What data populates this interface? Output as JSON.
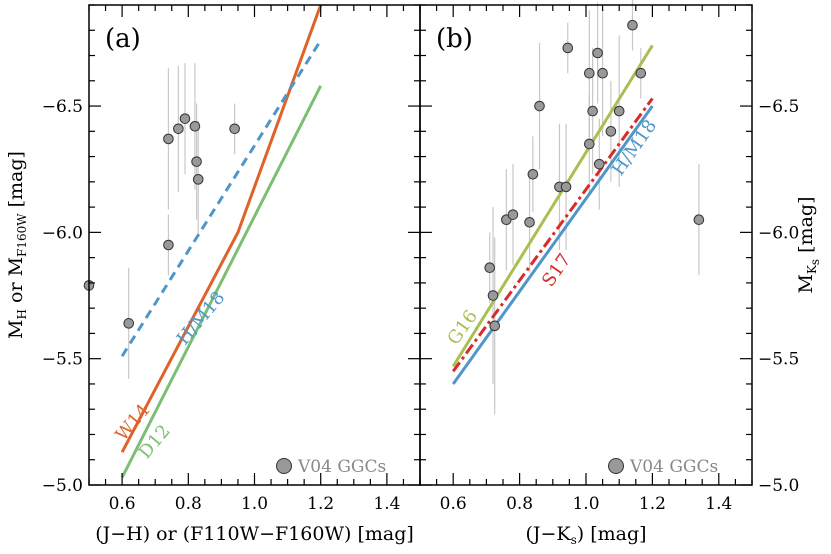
{
  "chart_data": [
    {
      "type": "scatter",
      "panel_tag": "(a)",
      "xlabel": "(J−H) or (F110W−F160W) [mag]",
      "ylabel": {
        "main": "M",
        "sub1": "H",
        "mid": " or M",
        "sub2": "F160W",
        "end": " [mag]"
      },
      "xlim": [
        0.5,
        1.5
      ],
      "ylim": [
        -5.0,
        -6.9
      ],
      "xticks": [
        0.6,
        0.8,
        1.0,
        1.2,
        1.4
      ],
      "xtick_labels": [
        "0.6",
        "0.8",
        "1.0",
        "1.2",
        "1.4"
      ],
      "yticks": [
        -5.0,
        -5.5,
        -6.0,
        -6.5
      ],
      "ytick_labels": [
        "−5.0",
        "−5.5",
        "−6.0",
        "−6.5"
      ],
      "legend": {
        "label": "V04 GGCs",
        "position": "lower-right"
      },
      "points": [
        {
          "x": 0.5,
          "y": -5.79,
          "err": 0.0
        },
        {
          "x": 0.62,
          "y": -5.64,
          "err": 0.22
        },
        {
          "x": 0.74,
          "y": -5.95,
          "err": 0.12
        },
        {
          "x": 0.74,
          "y": -6.37,
          "err": 0.28
        },
        {
          "x": 0.77,
          "y": -6.41,
          "err": 0.25
        },
        {
          "x": 0.79,
          "y": -6.45,
          "err": 0.22
        },
        {
          "x": 0.82,
          "y": -6.42,
          "err": 0.25
        },
        {
          "x": 0.825,
          "y": -6.28,
          "err": 0.23
        },
        {
          "x": 0.83,
          "y": -6.21,
          "err": 0.23
        },
        {
          "x": 0.94,
          "y": -6.41,
          "err": 0.1
        }
      ],
      "series": [
        {
          "name": "W14",
          "color": "#e0622b",
          "dash": "solid",
          "x": [
            0.6,
            0.95,
            1.2
          ],
          "y": [
            -5.13,
            -6.0,
            -6.9
          ]
        },
        {
          "name": "D12",
          "color": "#7cbf74",
          "dash": "solid",
          "x": [
            0.6,
            1.2
          ],
          "y": [
            -5.03,
            -6.58
          ]
        },
        {
          "name": "H/M18",
          "color": "#4f97c9",
          "dash": "dashed",
          "x": [
            0.6,
            1.2
          ],
          "y": [
            -5.51,
            -6.76
          ]
        }
      ],
      "labels": [
        {
          "text": "W14",
          "color": "#e0622b",
          "x": 0.605,
          "y": -5.17,
          "angle": -50
        },
        {
          "text": "D12",
          "color": "#7cbf74",
          "x": 0.675,
          "y": -5.1,
          "angle": -50
        },
        {
          "text": "H/M18",
          "color": "#4f97c9",
          "x": 0.79,
          "y": -5.55,
          "angle": -50
        }
      ]
    },
    {
      "type": "scatter",
      "panel_tag": "(b)",
      "xlabel": {
        "main": "(J−K",
        "sub": "s",
        "end": ") [mag]"
      },
      "ylabel": {
        "main": "M",
        "sub1": "K",
        "sub2": "s",
        "end": " [mag]"
      },
      "xlim": [
        0.5,
        1.5
      ],
      "ylim": [
        -5.0,
        -6.9
      ],
      "xticks": [
        0.6,
        0.8,
        1.0,
        1.2,
        1.4
      ],
      "xtick_labels": [
        "0.6",
        "0.8",
        "1.0",
        "1.2",
        "1.4"
      ],
      "yticks": [
        -5.0,
        -5.5,
        -6.0,
        -6.5
      ],
      "ytick_labels": [
        "−5.0",
        "−5.5",
        "−6.0",
        "−6.5"
      ],
      "legend": {
        "label": "V04 GGCs",
        "position": "lower-right"
      },
      "points": [
        {
          "x": 0.71,
          "y": -5.86,
          "err": 0.14
        },
        {
          "x": 0.72,
          "y": -5.75,
          "err": 0.35
        },
        {
          "x": 0.725,
          "y": -5.63,
          "err": 0.35
        },
        {
          "x": 0.76,
          "y": -6.05,
          "err": 0.2
        },
        {
          "x": 0.78,
          "y": -6.07,
          "err": 0.2
        },
        {
          "x": 0.83,
          "y": -6.04,
          "err": 0.2
        },
        {
          "x": 0.84,
          "y": -6.23,
          "err": 0.15
        },
        {
          "x": 0.86,
          "y": -6.5,
          "err": 0.25
        },
        {
          "x": 0.92,
          "y": -6.18,
          "err": 0.25
        },
        {
          "x": 0.94,
          "y": -6.18,
          "err": 0.25
        },
        {
          "x": 0.945,
          "y": -6.73,
          "err": 0.1
        },
        {
          "x": 1.01,
          "y": -6.35,
          "err": 0.2
        },
        {
          "x": 1.01,
          "y": -6.63,
          "err": 0.25
        },
        {
          "x": 1.02,
          "y": -6.48,
          "err": 0.25
        },
        {
          "x": 1.035,
          "y": -6.71,
          "err": 0.2
        },
        {
          "x": 1.04,
          "y": -6.27,
          "err": 0.18
        },
        {
          "x": 1.05,
          "y": -6.63,
          "err": 0.25
        },
        {
          "x": 1.075,
          "y": -6.4,
          "err": 0.2
        },
        {
          "x": 1.1,
          "y": -6.48,
          "err": 0.3
        },
        {
          "x": 1.14,
          "y": -6.82,
          "err": 0.1
        },
        {
          "x": 1.165,
          "y": -6.63,
          "err": 0.1
        },
        {
          "x": 1.34,
          "y": -6.05,
          "err": 0.22
        }
      ],
      "series": [
        {
          "name": "G16",
          "color": "#a9bf52",
          "dash": "solid",
          "x": [
            0.6,
            1.2
          ],
          "y": [
            -5.47,
            -6.74
          ]
        },
        {
          "name": "S17",
          "color": "#d72c2a",
          "dash": "dashdot",
          "x": [
            0.6,
            1.2
          ],
          "y": [
            -5.45,
            -6.53
          ]
        },
        {
          "name": "H/M18",
          "color": "#4f97c9",
          "dash": "solid",
          "x": [
            0.6,
            1.2
          ],
          "y": [
            -5.4,
            -6.5
          ]
        }
      ],
      "labels": [
        {
          "text": "G16",
          "color": "#a9bf52",
          "x": 0.61,
          "y": -5.55,
          "angle": -55
        },
        {
          "text": "S17",
          "color": "#d72c2a",
          "x": 0.895,
          "y": -5.78,
          "angle": -55
        },
        {
          "text": "H/M18",
          "color": "#4f97c9",
          "x": 1.105,
          "y": -6.22,
          "angle": -55
        }
      ]
    }
  ]
}
